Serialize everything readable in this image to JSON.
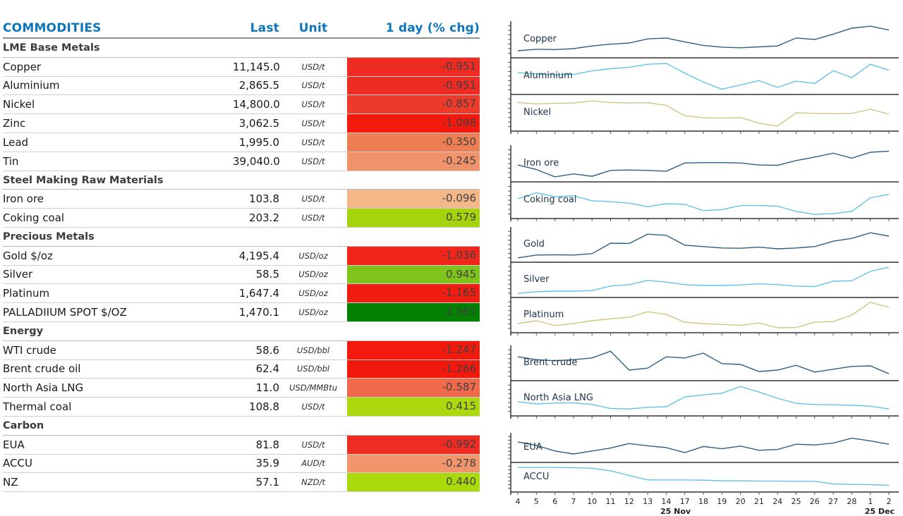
{
  "header": {
    "title": "COMMODITIES",
    "col_last": "Last",
    "col_unit": "Unit",
    "col_chg": "1 day (% chg)"
  },
  "colors": {
    "header_blue": "#0d76ba",
    "chg_text": "#404040",
    "line_navy": "#2f5f82",
    "line_lightblue": "#62c3e8",
    "line_tan": "#d4c483",
    "axis_dark": "#333333",
    "tick_gray": "#555555"
  },
  "table": {
    "sections": [
      {
        "label": "LME Base Metals",
        "rows": [
          {
            "name": "Copper",
            "last": "11,145.0",
            "unit": "USD/t",
            "chg": "-0.951",
            "chg_color": "#ee2b22"
          },
          {
            "name": "Aluminium",
            "last": "2,865.5",
            "unit": "USD/t",
            "chg": "-0.951",
            "chg_color": "#ee2b22"
          },
          {
            "name": "Nickel",
            "last": "14,800.0",
            "unit": "USD/t",
            "chg": "-0.857",
            "chg_color": "#ee3a2a"
          },
          {
            "name": "Zinc",
            "last": "3,062.5",
            "unit": "USD/t",
            "chg": "-1.098",
            "chg_color": "#f3190e"
          },
          {
            "name": "Lead",
            "last": "1,995.0",
            "unit": "USD/t",
            "chg": "-0.350",
            "chg_color": "#ee7e54"
          },
          {
            "name": "Tin",
            "last": "39,040.0",
            "unit": "USD/t",
            "chg": "-0.245",
            "chg_color": "#f0926a"
          }
        ]
      },
      {
        "label": "Steel Making Raw Materials",
        "rows": [
          {
            "name": "Iron ore",
            "last": "103.8",
            "unit": "USD/t",
            "chg": "-0.096",
            "chg_color": "#f4b787"
          },
          {
            "name": "Coking coal",
            "last": "203.2",
            "unit": "USD/t",
            "chg": "0.579",
            "chg_color": "#a6d40c"
          }
        ]
      },
      {
        "label": "Precious Metals",
        "rows": [
          {
            "name": "Gold $/oz",
            "last": "4,195.4",
            "unit": "USD/oz",
            "chg": "-1.036",
            "chg_color": "#f0261a"
          },
          {
            "name": "Silver",
            "last": "58.5",
            "unit": "USD/oz",
            "chg": "0.945",
            "chg_color": "#7ec41d"
          },
          {
            "name": "Platinum",
            "last": "1,647.4",
            "unit": "USD/oz",
            "chg": "-1.165",
            "chg_color": "#f11d10"
          },
          {
            "name": "PALLADIIUM SPOT $/OZ",
            "last": "1,470.1",
            "unit": "USD/oz",
            "chg": "2.565",
            "chg_color": "#028102"
          }
        ]
      },
      {
        "label": "Energy",
        "rows": [
          {
            "name": "WTI crude",
            "last": "58.6",
            "unit": "USD/bbl",
            "chg": "-1.247",
            "chg_color": "#f21a0d"
          },
          {
            "name": "Brent crude oil",
            "last": "62.4",
            "unit": "USD/bbl",
            "chg": "-1.266",
            "chg_color": "#f2180c"
          },
          {
            "name": "North Asia LNG",
            "last": "11.0",
            "unit": "USD/MMBtu",
            "chg": "-0.587",
            "chg_color": "#f0694a"
          },
          {
            "name": "Thermal coal",
            "last": "108.8",
            "unit": "USD/t",
            "chg": "0.415",
            "chg_color": "#add80d"
          }
        ]
      },
      {
        "label": "Carbon",
        "rows": [
          {
            "name": "EUA",
            "last": "81.8",
            "unit": "USD/t",
            "chg": "-0.992",
            "chg_color": "#ee2c21"
          },
          {
            "name": "ACCU",
            "last": "35.9",
            "unit": "AUD/t",
            "chg": "-0.278",
            "chg_color": "#f0956c"
          },
          {
            "name": "NZ",
            "last": "57.1",
            "unit": "NZD/t",
            "chg": "0.440",
            "chg_color": "#aad90c"
          }
        ]
      }
    ]
  },
  "chart_data": [
    {
      "type": "line",
      "legend_position": "inside-left",
      "y_note": "sparklines, y normalized 0-1 (no y tick labels shown)",
      "series": [
        {
          "name": "Copper",
          "color": "navy",
          "y": [
            0.12,
            0.17,
            0.16,
            0.19,
            0.28,
            0.34,
            0.38,
            0.52,
            0.55,
            0.42,
            0.3,
            0.24,
            0.22,
            0.25,
            0.28,
            0.55,
            0.5,
            0.68,
            0.88,
            0.95,
            0.82
          ]
        },
        {
          "name": "Aluminium",
          "color": "lightblue",
          "y": [
            0.62,
            0.57,
            0.55,
            0.56,
            0.68,
            0.75,
            0.8,
            0.9,
            0.93,
            0.6,
            0.3,
            0.06,
            0.2,
            0.35,
            0.12,
            0.33,
            0.25,
            0.68,
            0.45,
            0.9,
            0.7
          ]
        },
        {
          "name": "Nickel",
          "color": "tan",
          "y": [
            0.85,
            0.8,
            0.82,
            0.83,
            0.9,
            0.85,
            0.83,
            0.84,
            0.75,
            0.4,
            0.33,
            0.32,
            0.34,
            0.15,
            0.05,
            0.5,
            0.48,
            0.47,
            0.48,
            0.62,
            0.45
          ]
        }
      ]
    },
    {
      "type": "line",
      "series": [
        {
          "name": "Iron ore",
          "color": "navy",
          "y": [
            0.45,
            0.3,
            0.05,
            0.15,
            0.07,
            0.27,
            0.28,
            0.27,
            0.24,
            0.52,
            0.53,
            0.53,
            0.52,
            0.45,
            0.44,
            0.6,
            0.72,
            0.85,
            0.68,
            0.88,
            0.92
          ]
        },
        {
          "name": "Coking coal",
          "color": "lightblue",
          "y": [
            0.55,
            0.75,
            0.62,
            0.65,
            0.48,
            0.45,
            0.4,
            0.28,
            0.38,
            0.36,
            0.15,
            0.18,
            0.32,
            0.32,
            0.3,
            0.12,
            0.02,
            0.05,
            0.12,
            0.58,
            0.7
          ]
        }
      ]
    },
    {
      "type": "line",
      "series": [
        {
          "name": "Gold",
          "color": "navy",
          "y": [
            0.03,
            0.13,
            0.14,
            0.13,
            0.18,
            0.55,
            0.54,
            0.87,
            0.83,
            0.48,
            0.43,
            0.38,
            0.37,
            0.41,
            0.35,
            0.38,
            0.43,
            0.62,
            0.72,
            0.92,
            0.8
          ]
        },
        {
          "name": "Silver",
          "color": "lightblue",
          "y": [
            0.02,
            0.08,
            0.1,
            0.1,
            0.12,
            0.28,
            0.33,
            0.48,
            0.42,
            0.33,
            0.3,
            0.3,
            0.32,
            0.36,
            0.33,
            0.28,
            0.26,
            0.45,
            0.47,
            0.8,
            0.95
          ]
        },
        {
          "name": "Platinum",
          "color": "tan",
          "y": [
            0.2,
            0.3,
            0.13,
            0.2,
            0.3,
            0.37,
            0.42,
            0.62,
            0.52,
            0.25,
            0.2,
            0.17,
            0.14,
            0.22,
            0.05,
            0.06,
            0.25,
            0.27,
            0.5,
            0.95,
            0.78
          ]
        }
      ]
    },
    {
      "type": "line",
      "series": [
        {
          "name": "Brent crude",
          "color": "navy",
          "y": [
            0.72,
            0.62,
            0.58,
            0.62,
            0.68,
            0.92,
            0.25,
            0.32,
            0.72,
            0.68,
            0.85,
            0.48,
            0.45,
            0.2,
            0.25,
            0.42,
            0.18,
            0.28,
            0.38,
            0.4,
            0.12
          ]
        },
        {
          "name": "North Asia LNG",
          "color": "lightblue",
          "y": [
            0.38,
            0.3,
            0.33,
            0.34,
            0.28,
            0.14,
            0.12,
            0.18,
            0.2,
            0.55,
            0.62,
            0.68,
            0.92,
            0.72,
            0.5,
            0.32,
            0.28,
            0.27,
            0.25,
            0.22,
            0.12
          ]
        }
      ]
    },
    {
      "type": "line",
      "series": [
        {
          "name": "EUA",
          "color": "navy",
          "y": [
            0.75,
            0.6,
            0.35,
            0.22,
            0.35,
            0.48,
            0.68,
            0.58,
            0.5,
            0.28,
            0.55,
            0.45,
            0.57,
            0.38,
            0.42,
            0.65,
            0.62,
            0.7,
            0.92,
            0.8,
            0.65
          ]
        },
        {
          "name": "ACCU",
          "color": "lightblue",
          "y": [
            0.93,
            0.93,
            0.93,
            0.92,
            0.9,
            0.78,
            0.58,
            0.38,
            0.38,
            0.38,
            0.37,
            0.34,
            0.34,
            0.33,
            0.33,
            0.32,
            0.32,
            0.2,
            0.18,
            0.17,
            0.14
          ]
        }
      ]
    }
  ],
  "x_axis": {
    "labels": [
      "4",
      "5",
      "6",
      "7",
      "10",
      "11",
      "12",
      "13",
      "14",
      "17",
      "18",
      "19",
      "20",
      "21",
      "24",
      "25",
      "26",
      "27",
      "28",
      "1",
      "2"
    ],
    "month_left": "25 Nov",
    "month_right": "25 Dec"
  }
}
